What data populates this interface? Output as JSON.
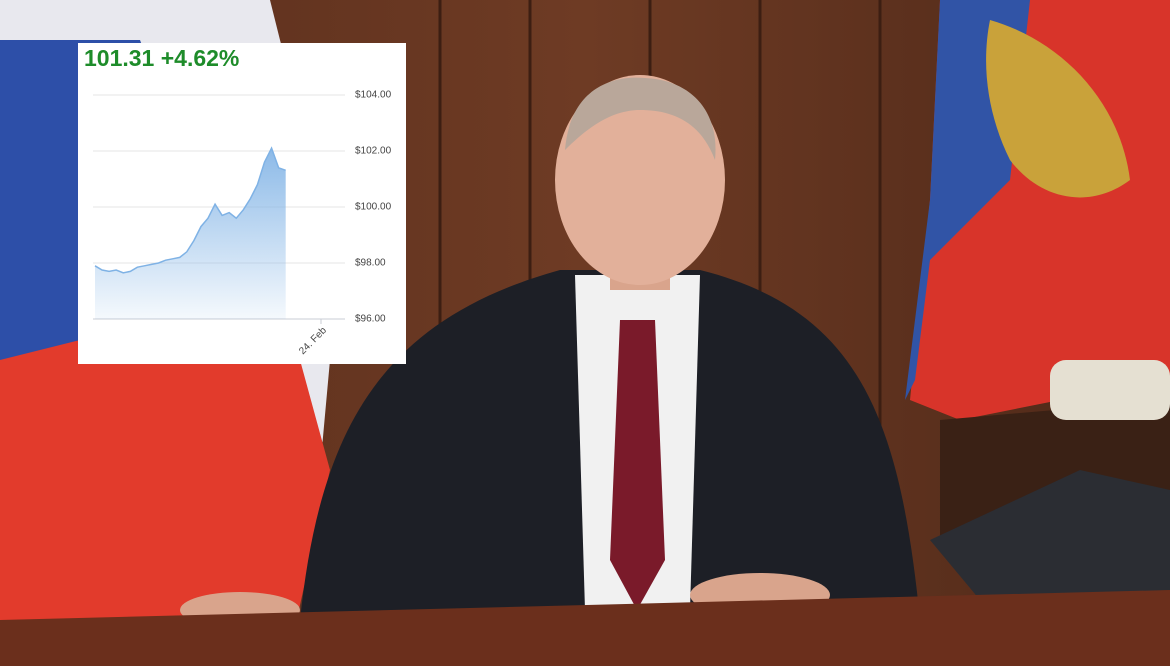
{
  "chart_data": {
    "type": "area",
    "title": "101.31 +4.62%",
    "title_color": "#1e8c2a",
    "categories": [
      null,
      null,
      null,
      null,
      null,
      null,
      null,
      null,
      null,
      null,
      null,
      null,
      null,
      null,
      null,
      null,
      null,
      null,
      null,
      null,
      null,
      null,
      null,
      null,
      null,
      null,
      null,
      null,
      null,
      null,
      null,
      null,
      "24. Feb"
    ],
    "values": [
      97.9,
      97.75,
      97.7,
      97.75,
      97.65,
      97.7,
      97.85,
      97.9,
      97.95,
      98.0,
      98.1,
      98.15,
      98.2,
      98.4,
      98.8,
      99.3,
      99.6,
      100.1,
      99.7,
      99.8,
      99.6,
      99.9,
      100.3,
      100.8,
      101.6,
      102.1,
      101.4,
      101.31,
      null,
      null,
      null,
      null,
      null
    ],
    "color": "#7fb2e5",
    "ylim": [
      96,
      104
    ],
    "yticks": [
      {
        "value": 96,
        "label": "$96.00"
      },
      {
        "value": 98,
        "label": "$98.00"
      },
      {
        "value": 100,
        "label": "$100.00"
      },
      {
        "value": 102,
        "label": "$102.00"
      },
      {
        "value": 104,
        "label": "$104.00"
      }
    ],
    "grid": true
  }
}
